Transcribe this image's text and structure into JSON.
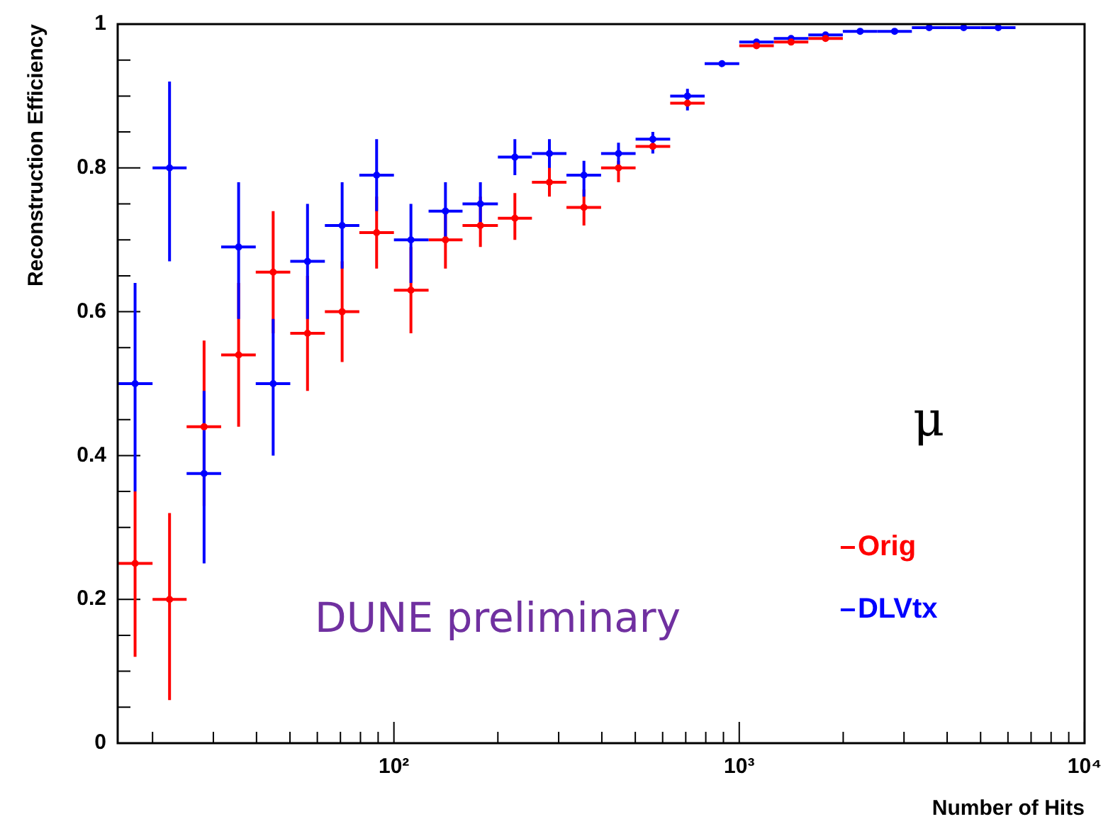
{
  "chart_data": {
    "type": "scatter",
    "xlabel": "Number of Hits",
    "ylabel": "Reconstruction Efficiency",
    "log": "x",
    "marker": "circle",
    "legend": "bottom right",
    "x": [
      17.8,
      22.4,
      28.2,
      35.5,
      44.7,
      56.2,
      70.8,
      89.1,
      112,
      141,
      178,
      224,
      282,
      355,
      447,
      562,
      708,
      891,
      1122,
      1413,
      1778,
      2239,
      2818,
      3548,
      4467,
      5623
    ],
    "xlim": [
      15.85,
      10000
    ],
    "xticks": [
      {
        "value": 20,
        "label": null
      },
      {
        "value": 30,
        "label": null
      },
      {
        "value": 40,
        "label": null
      },
      {
        "value": 50,
        "label": null
      },
      {
        "value": 60,
        "label": null
      },
      {
        "value": 70,
        "label": null
      },
      {
        "value": 80,
        "label": null
      },
      {
        "value": 90,
        "label": null
      },
      {
        "value": 100,
        "label": "10²"
      },
      {
        "value": 200,
        "label": null
      },
      {
        "value": 300,
        "label": null
      },
      {
        "value": 400,
        "label": null
      },
      {
        "value": 500,
        "label": null
      },
      {
        "value": 600,
        "label": null
      },
      {
        "value": 700,
        "label": null
      },
      {
        "value": 800,
        "label": null
      },
      {
        "value": 900,
        "label": null
      },
      {
        "value": 1000,
        "label": "10³"
      },
      {
        "value": 2000,
        "label": null
      },
      {
        "value": 3000,
        "label": null
      },
      {
        "value": 4000,
        "label": null
      },
      {
        "value": 5000,
        "label": null
      },
      {
        "value": 6000,
        "label": null
      },
      {
        "value": 7000,
        "label": null
      },
      {
        "value": 8000,
        "label": null
      },
      {
        "value": 9000,
        "label": null
      },
      {
        "value": 10000,
        "label": "10⁴"
      }
    ],
    "ylim": [
      0,
      1
    ],
    "yticks": [
      0,
      {
        "value": 0.05,
        "label": null
      },
      {
        "value": 0.1,
        "label": null
      },
      {
        "value": 0.15,
        "label": null
      },
      0.2,
      {
        "value": 0.25,
        "label": null
      },
      {
        "value": 0.3,
        "label": null
      },
      {
        "value": 0.35,
        "label": null
      },
      0.4,
      {
        "value": 0.45,
        "label": null
      },
      {
        "value": 0.5,
        "label": null
      },
      {
        "value": 0.55,
        "label": null
      },
      0.6,
      {
        "value": 0.65,
        "label": null
      },
      {
        "value": 0.7,
        "label": null
      },
      {
        "value": 0.75,
        "label": null
      },
      0.8,
      {
        "value": 0.85,
        "label": null
      },
      {
        "value": 0.9,
        "label": null
      },
      {
        "value": 0.95,
        "label": null
      },
      1
    ],
    "series": [
      {
        "name": "Orig",
        "color": "#ff0000",
        "values": [
          0.25,
          0.2,
          0.44,
          0.54,
          0.655,
          0.57,
          0.6,
          0.71,
          0.63,
          0.7,
          0.72,
          0.73,
          0.78,
          0.745,
          0.8,
          0.83,
          0.89,
          null,
          0.97,
          0.975,
          0.98,
          null,
          null,
          null,
          null,
          null
        ],
        "errors": [
          [
            0.12,
            0.35
          ],
          [
            0.06,
            0.32
          ],
          [
            0.33,
            0.56
          ],
          [
            0.44,
            0.64
          ],
          [
            0.57,
            0.74
          ],
          [
            0.49,
            0.65
          ],
          [
            0.53,
            0.67
          ],
          [
            0.66,
            0.76
          ],
          [
            0.57,
            0.69
          ],
          [
            0.66,
            0.74
          ],
          [
            0.69,
            0.76
          ],
          [
            0.7,
            0.765
          ],
          [
            0.76,
            0.81
          ],
          [
            0.72,
            0.77
          ],
          [
            0.78,
            0.81
          ],
          null,
          null,
          null,
          null,
          null,
          null,
          null,
          null,
          null,
          null,
          null
        ],
        "xerrors": [
          [
            15.85,
            20
          ],
          [
            20,
            25.1
          ],
          [
            25.1,
            31.6
          ],
          [
            31.6,
            39.8
          ],
          [
            39.8,
            50.1
          ],
          [
            50.1,
            63.1
          ],
          [
            63.1,
            79.4
          ],
          [
            79.4,
            100
          ],
          [
            100,
            126
          ],
          [
            126,
            158
          ],
          [
            158,
            200
          ],
          [
            200,
            251
          ],
          [
            251,
            316
          ],
          [
            316,
            398
          ],
          [
            398,
            501
          ],
          [
            501,
            631
          ],
          [
            631,
            794
          ],
          null,
          [
            1000,
            1259
          ],
          [
            1259,
            1585
          ],
          [
            1585,
            1995
          ],
          null,
          null,
          null,
          null,
          null
        ]
      },
      {
        "name": "DLVtx",
        "color": "#0000ff",
        "values": [
          0.5,
          0.8,
          0.375,
          0.69,
          0.5,
          0.67,
          0.72,
          0.79,
          0.7,
          0.74,
          0.75,
          0.815,
          0.82,
          0.79,
          0.82,
          0.84,
          0.9,
          0.945,
          0.975,
          0.98,
          0.985,
          0.99,
          0.99,
          0.995,
          0.995,
          0.995
        ],
        "errors": [
          [
            0.35,
            0.64
          ],
          [
            0.67,
            0.92
          ],
          [
            0.25,
            0.49
          ],
          [
            0.59,
            0.78
          ],
          [
            0.4,
            0.59
          ],
          [
            0.59,
            0.75
          ],
          [
            0.66,
            0.78
          ],
          [
            0.74,
            0.84
          ],
          [
            0.64,
            0.75
          ],
          [
            0.7,
            0.78
          ],
          [
            0.72,
            0.78
          ],
          [
            0.79,
            0.84
          ],
          [
            0.8,
            0.84
          ],
          [
            0.76,
            0.81
          ],
          [
            0.8,
            0.835
          ],
          [
            0.82,
            0.85
          ],
          [
            0.88,
            0.91
          ],
          null,
          null,
          null,
          null,
          null,
          null,
          null,
          null,
          null
        ],
        "xerrors": [
          [
            15.85,
            20
          ],
          [
            20,
            25.1
          ],
          [
            25.1,
            31.6
          ],
          [
            31.6,
            39.8
          ],
          [
            39.8,
            50.1
          ],
          [
            50.1,
            63.1
          ],
          [
            63.1,
            79.4
          ],
          [
            79.4,
            100
          ],
          [
            100,
            126
          ],
          [
            126,
            158
          ],
          [
            158,
            200
          ],
          [
            200,
            251
          ],
          [
            251,
            316
          ],
          [
            316,
            398
          ],
          [
            398,
            501
          ],
          [
            501,
            631
          ],
          [
            631,
            794
          ],
          [
            794,
            1000
          ],
          [
            1000,
            1259
          ],
          [
            1259,
            1585
          ],
          [
            1585,
            1995
          ],
          [
            1995,
            2512
          ],
          [
            2512,
            3162
          ],
          [
            3162,
            3981
          ],
          [
            3981,
            5012
          ],
          [
            5012,
            6310
          ]
        ]
      }
    ],
    "annotations": [
      "μ",
      "DUNE preliminary"
    ]
  }
}
